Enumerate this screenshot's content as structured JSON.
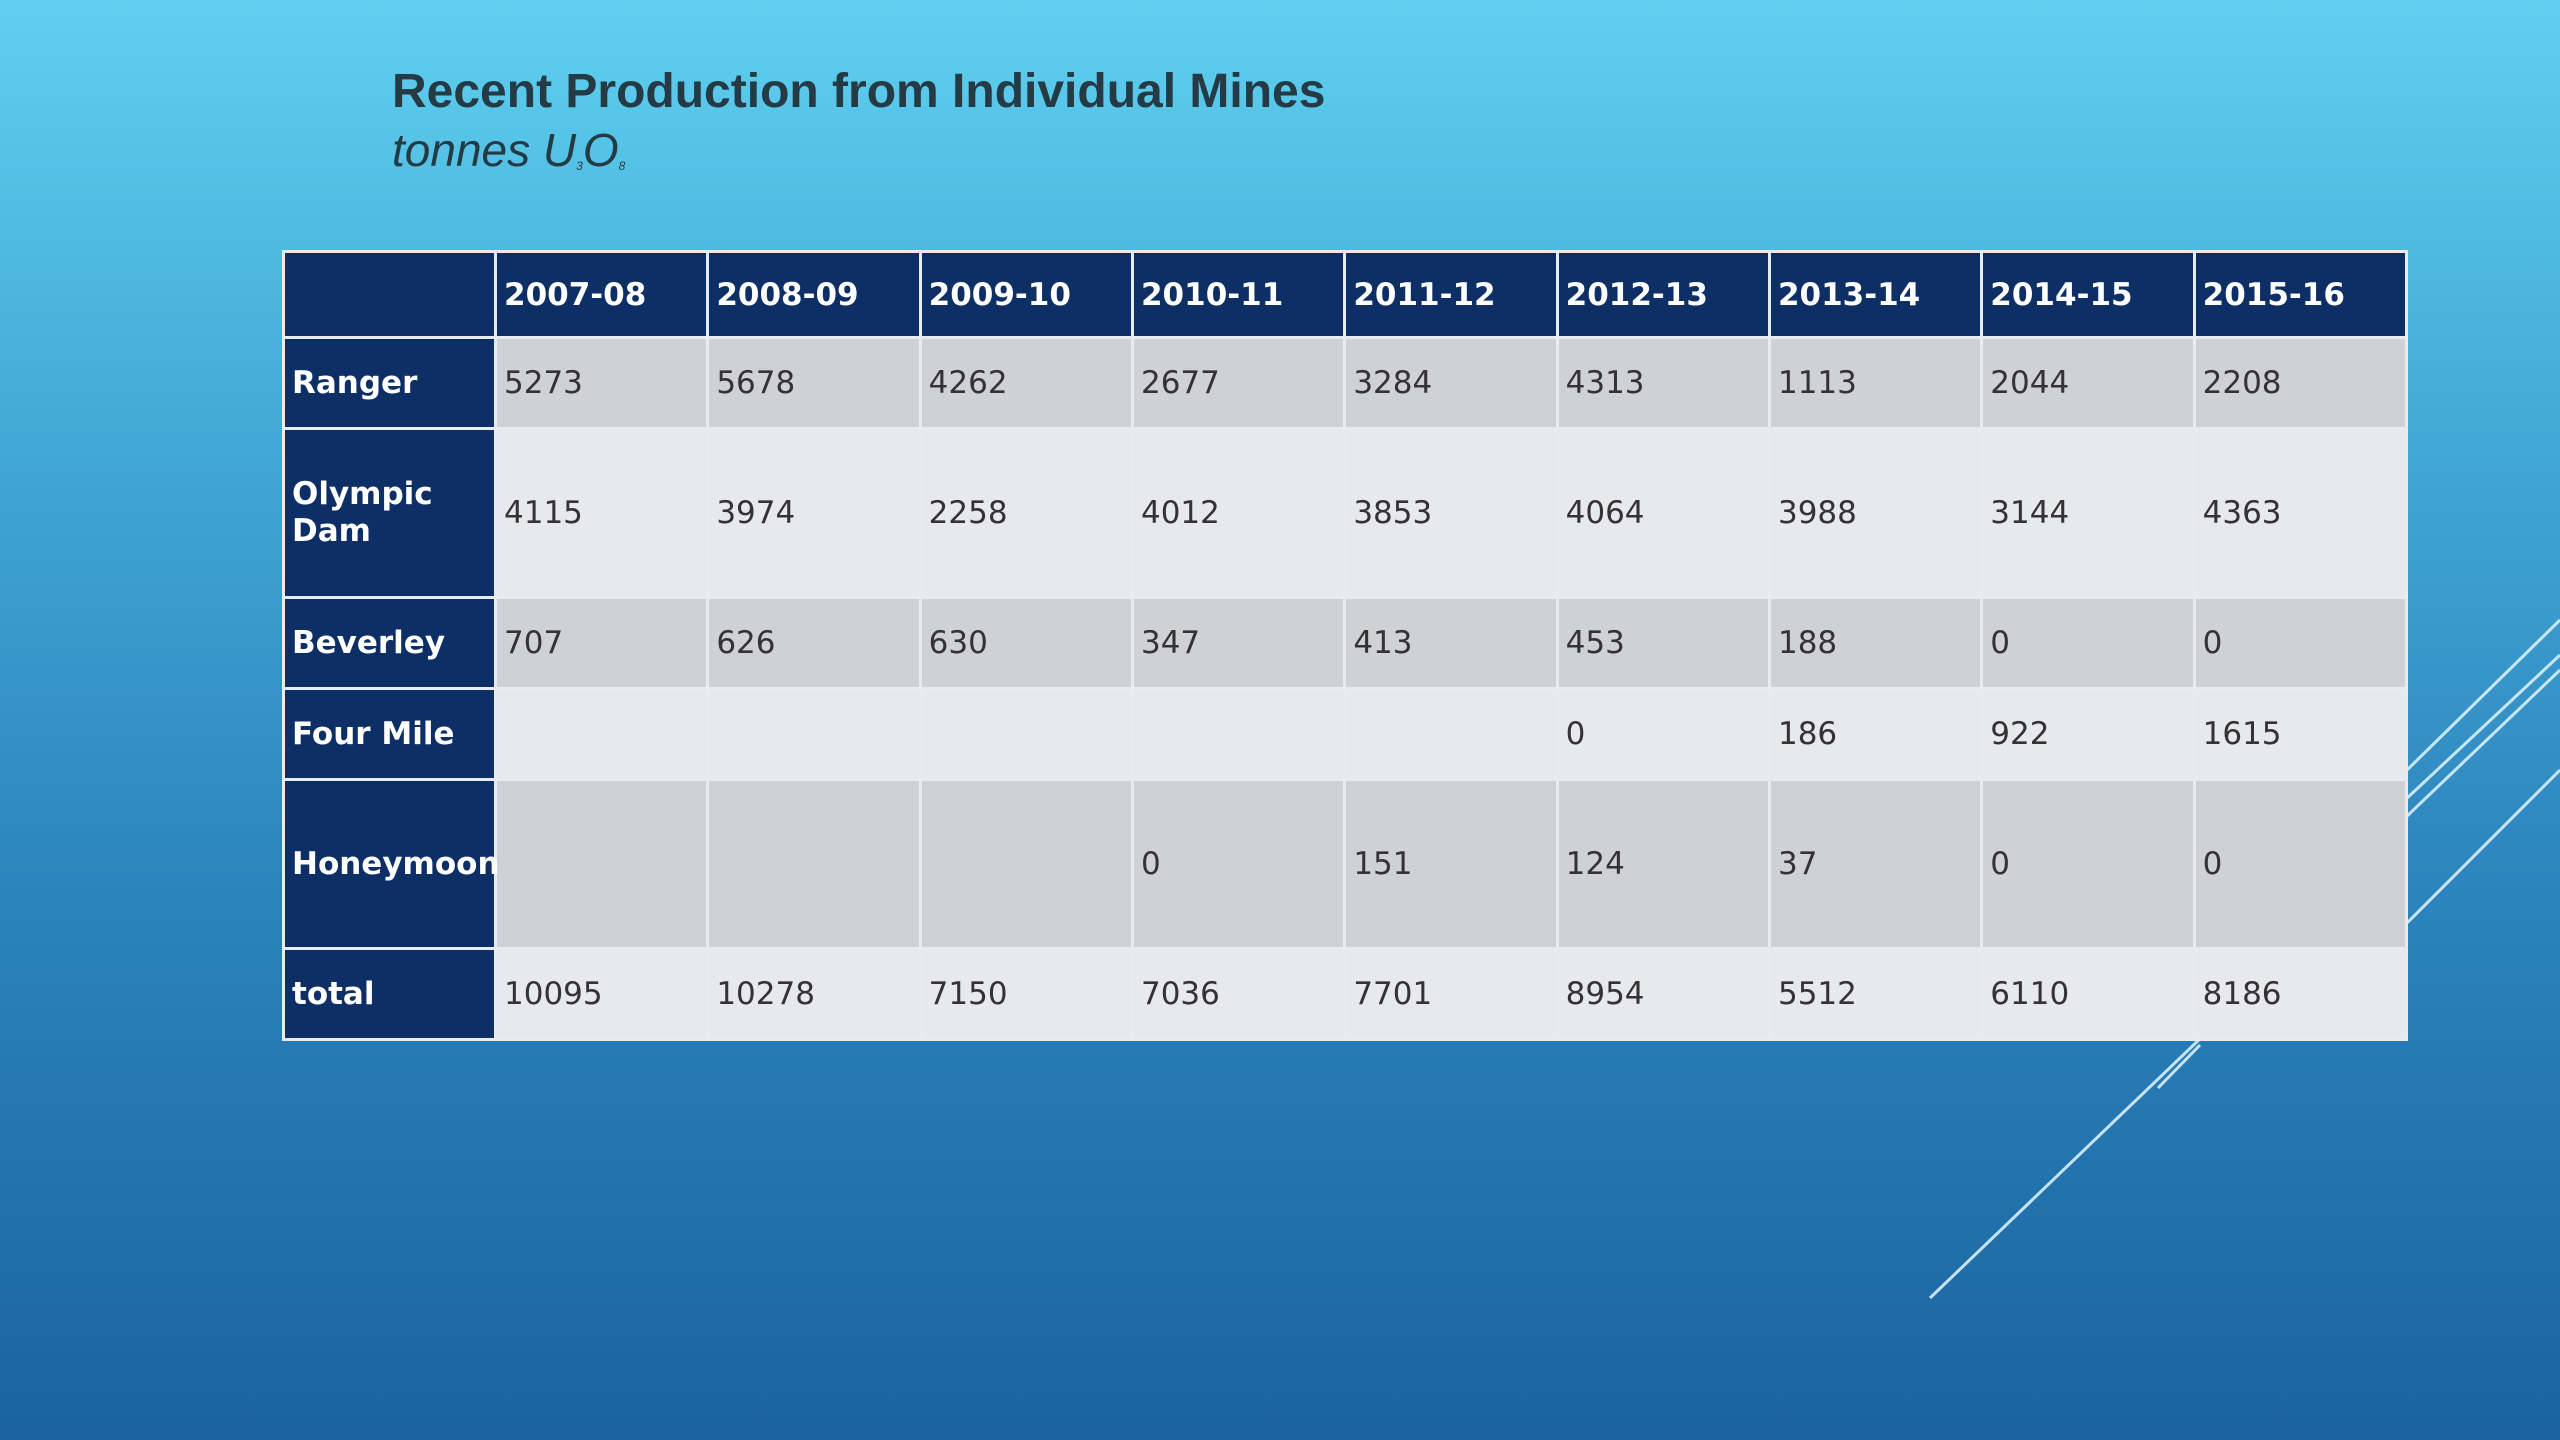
{
  "title": "Recent Production from Individual Mines",
  "subtitle": {
    "prefix": "tonnes U",
    "sub1": "3",
    "middle": "O",
    "sub2": "8"
  },
  "table": {
    "corner": "",
    "columns": [
      "2007-08",
      "2008-09",
      "2009-10",
      "2010-11",
      "2011-12",
      "2012-13",
      "2013-14",
      "2014-15",
      "2015-16"
    ],
    "rows": [
      {
        "label": "Ranger",
        "values": [
          "5273",
          "5678",
          "4262",
          "2677",
          "3284",
          "4313",
          "1113",
          "2044",
          "2208"
        ]
      },
      {
        "label": "Olympic Dam",
        "values": [
          "4115",
          "3974",
          "2258",
          "4012",
          "3853",
          "4064",
          "3988",
          "3144",
          "4363"
        ]
      },
      {
        "label": "Beverley",
        "values": [
          "707",
          "626",
          "630",
          "347",
          "413",
          "453",
          "188",
          "0",
          "0"
        ]
      },
      {
        "label": "Four Mile",
        "values": [
          "",
          "",
          "",
          "",
          "",
          "0",
          "186",
          "922",
          "1615"
        ]
      },
      {
        "label": "Honeymoon",
        "values": [
          "",
          "",
          "",
          "0",
          "151",
          "124",
          "37",
          "0",
          "0"
        ]
      },
      {
        "label": "total",
        "values": [
          "10095",
          "10278",
          "7150",
          "7036",
          "7701",
          "8954",
          "5512",
          "6110",
          "8186"
        ]
      }
    ]
  }
}
